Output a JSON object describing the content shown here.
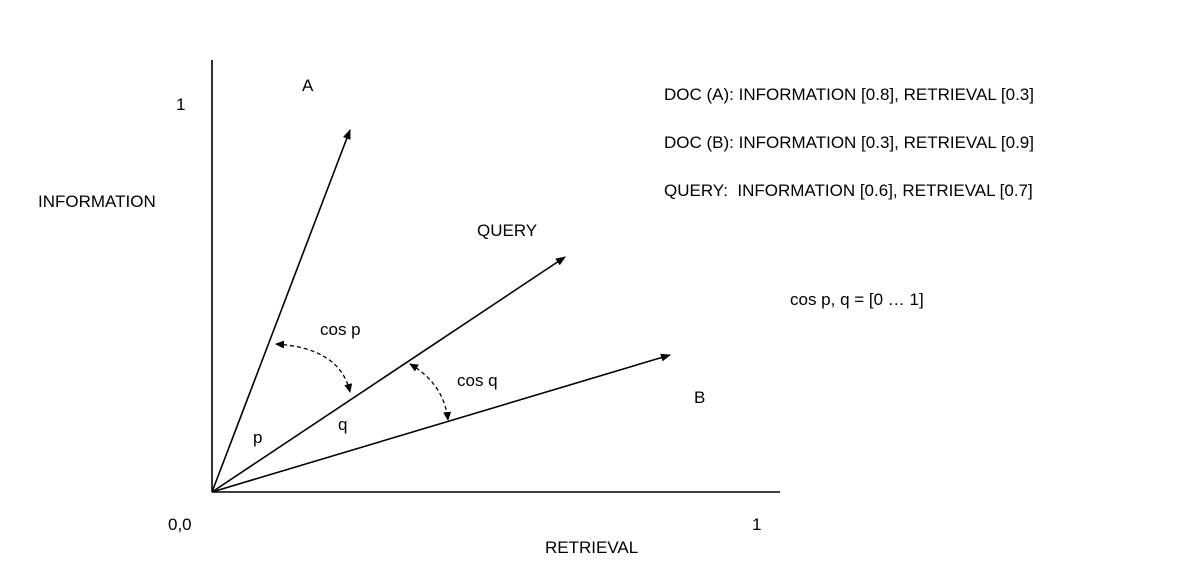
{
  "axes": {
    "y_label": "INFORMATION",
    "x_label": "RETRIEVAL",
    "origin_label": "0,0",
    "y_max_label": "1",
    "x_max_label": "1"
  },
  "vectors": {
    "doc_a_label": "A",
    "doc_b_label": "B",
    "query_label": "QUERY"
  },
  "angles": {
    "p_label": "p",
    "q_label": "q",
    "cos_p_label": "cos p",
    "cos_q_label": "cos q"
  },
  "legend": [
    "DOC (A): INFORMATION [0.8], RETRIEVAL [0.3]",
    "DOC (B): INFORMATION [0.3], RETRIEVAL [0.9]",
    "QUERY:  INFORMATION [0.6], RETRIEVAL [0.7]"
  ],
  "formula": "cos p, q = [0 … 1]"
}
